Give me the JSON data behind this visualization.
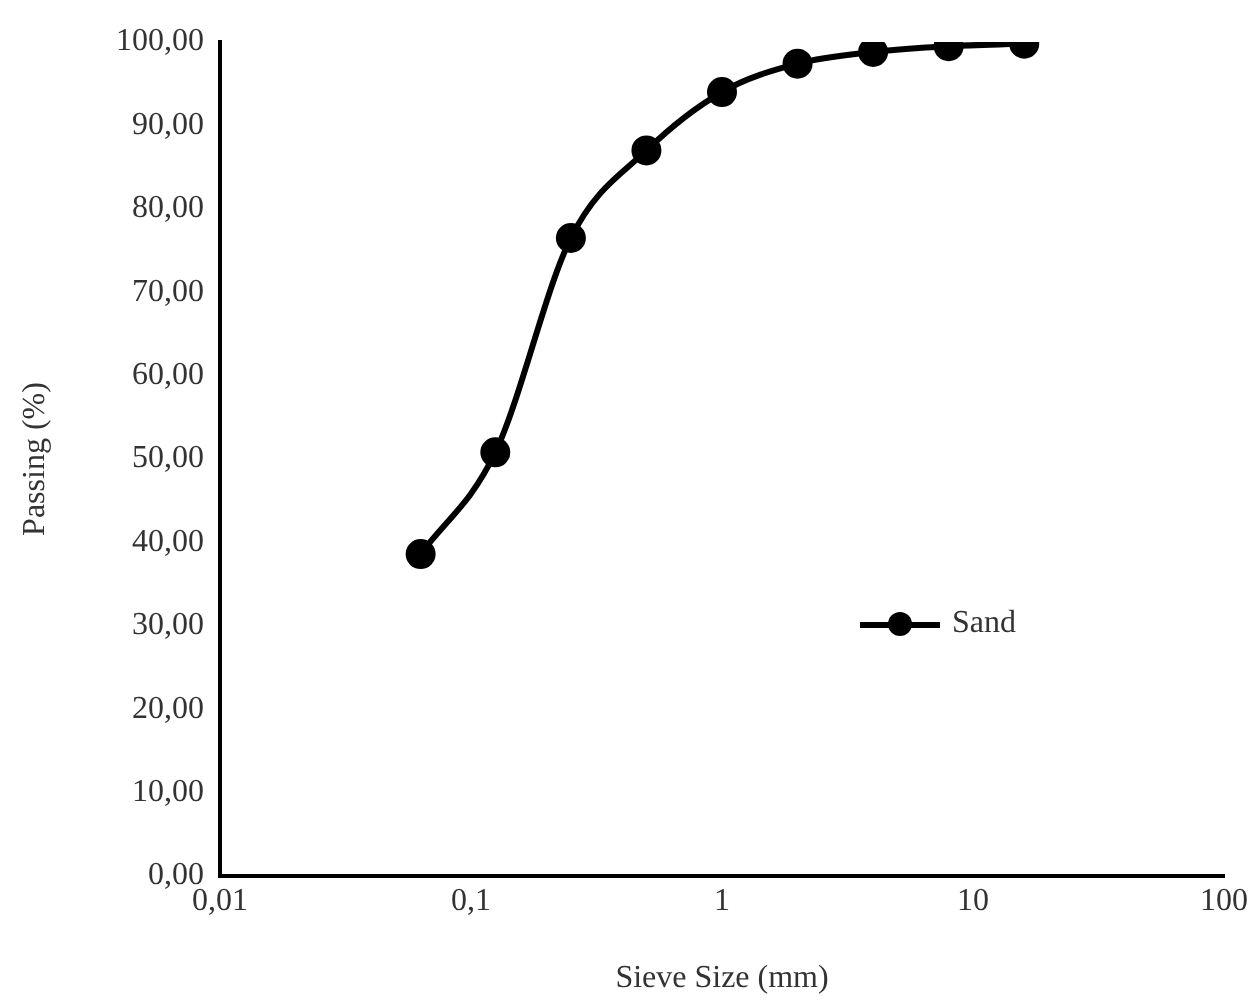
{
  "chart_data": {
    "type": "line",
    "xlabel": "Sieve Size (mm)",
    "ylabel": "Passing (%)",
    "x": [
      0.063,
      0.125,
      0.25,
      0.5,
      1,
      2,
      4,
      8,
      16
    ],
    "series": [
      {
        "name": "Sand",
        "color": "#000000",
        "values": [
          38.6,
          50.8,
          76.5,
          87.0,
          94.0,
          97.4,
          98.8,
          99.5,
          99.8
        ]
      }
    ],
    "log": "x",
    "xlim": [
      0.01,
      100
    ],
    "xticks": [
      {
        "value": 0.01,
        "label": "0,01"
      },
      {
        "value": 0.1,
        "label": "0,1"
      },
      1,
      10,
      100
    ],
    "ylim": [
      0,
      100
    ],
    "yticks": [
      {
        "value": 0,
        "label": "0,00"
      },
      {
        "value": 10,
        "label": "10,00"
      },
      {
        "value": 20,
        "label": "20,00"
      },
      {
        "value": 30,
        "label": "30,00"
      },
      {
        "value": 40,
        "label": "40,00"
      },
      {
        "value": 50,
        "label": "50,00"
      },
      {
        "value": 60,
        "label": "60,00"
      },
      {
        "value": 70,
        "label": "70,00"
      },
      {
        "value": 80,
        "label": "80,00"
      },
      {
        "value": 90,
        "label": "90,00"
      },
      {
        "value": 100,
        "label": "100,00"
      }
    ],
    "grid": false,
    "legend": "center right",
    "marker": "circle",
    "line_style": "solid"
  }
}
